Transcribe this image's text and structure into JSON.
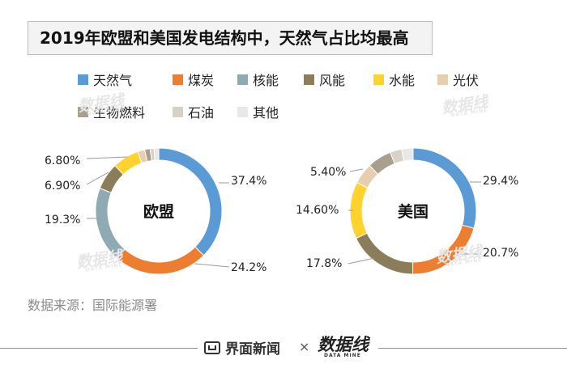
{
  "title": "2019年欧盟和美国发电结构中，天然气占比均最高",
  "source": "数据来源：国际能源署",
  "footer": {
    "brand": "界面新闻",
    "separator": "×",
    "partner": "数据线",
    "partner_sub": "DATA MINE"
  },
  "watermark": {
    "text": "数据线",
    "sub": "DATA MINE"
  },
  "legend": [
    {
      "name": "天然气",
      "color": "#5b9bd5"
    },
    {
      "name": "煤炭",
      "color": "#ed7d31"
    },
    {
      "name": "核能",
      "color": "#8faab3"
    },
    {
      "name": "风能",
      "color": "#8b7d5a"
    },
    {
      "name": "水能",
      "color": "#ffd22e"
    },
    {
      "name": "光伏",
      "color": "#e6cfb0"
    },
    {
      "name": "生物燃料",
      "color": "#a89f8c"
    },
    {
      "name": "石油",
      "color": "#d8d2c6"
    },
    {
      "name": "其他",
      "color": "#e8e8e8"
    }
  ],
  "chart_data": [
    {
      "type": "pie",
      "center_label": "欧盟",
      "categories": [
        "天然气",
        "煤炭",
        "核能",
        "风能",
        "水能",
        "光伏",
        "生物燃料",
        "石油",
        "其他"
      ],
      "values": [
        37.4,
        24.2,
        19.3,
        6.9,
        6.8,
        1.8,
        1.4,
        1.0,
        1.2
      ],
      "labels": {
        "0": "37.4%",
        "1": "24.2%",
        "2": "19.3%",
        "3": "6.90%",
        "4": "6.80%"
      }
    },
    {
      "type": "pie",
      "center_label": "美国",
      "categories": [
        "天然气",
        "煤炭",
        "核能",
        "风能",
        "水能",
        "光伏",
        "生物燃料",
        "石油",
        "其他"
      ],
      "values": [
        29.4,
        20.7,
        0,
        17.8,
        14.6,
        5.4,
        6.2,
        3.0,
        2.9
      ],
      "labels": {
        "0": "29.4%",
        "1": "20.7%",
        "3": "17.8%",
        "4": "14.60%",
        "5": "5.40%"
      }
    }
  ]
}
